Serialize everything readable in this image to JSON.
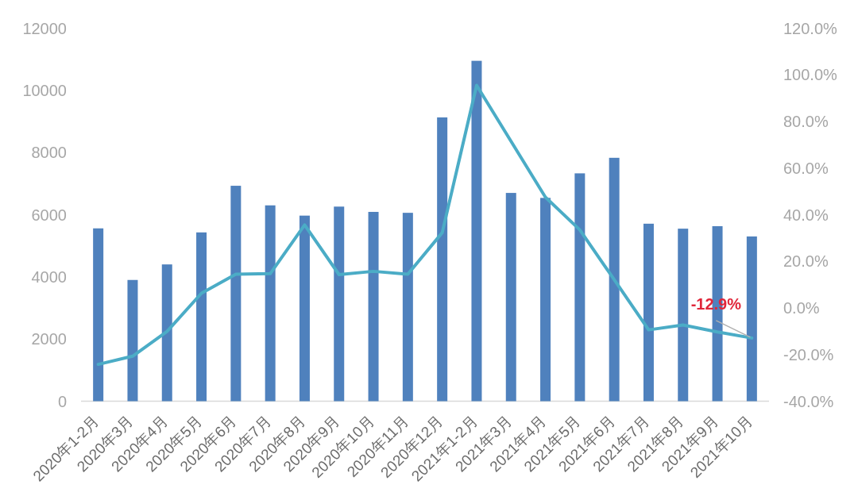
{
  "chart_data": {
    "type": "bar",
    "categories": [
      "2020年1-2月",
      "2020年3月",
      "2020年4月",
      "2020年5月",
      "2020年6月",
      "2020年7月",
      "2020年8月",
      "2020年9月",
      "2020年10月",
      "2020年11月",
      "2020年12月",
      "2021年1-2月",
      "2021年3月",
      "2021年4月",
      "2021年5月",
      "2021年6月",
      "2021年7月",
      "2021年8月",
      "2021年9月",
      "2021年10月"
    ],
    "series": [
      {
        "color": "#4f81bd",
        "values": [
          5560,
          3900,
          4400,
          5430,
          6930,
          6300,
          5970,
          6260,
          6090,
          6060,
          9130,
          10950,
          6700,
          6540,
          7330,
          7830,
          5710,
          5550,
          5630,
          5300
        ]
      },
      {
        "type": "line",
        "axis": "y2",
        "color": "#4bacc6",
        "values": [
          -24.2,
          -20.7,
          -10.1,
          6.3,
          14.5,
          14.7,
          35.6,
          14.3,
          15.7,
          14.5,
          32.3,
          95.5,
          71.5,
          47.5,
          33.5,
          12.1,
          -9.4,
          -7.3,
          -10.3,
          -12.9
        ],
        "value_labels": [
          null,
          null,
          null,
          null,
          null,
          null,
          null,
          null,
          null,
          null,
          null,
          null,
          null,
          null,
          null,
          null,
          null,
          null,
          null,
          "-12.9%"
        ]
      }
    ],
    "ylim": [
      0,
      12000
    ],
    "yticks": [
      0,
      2000,
      4000,
      6000,
      8000,
      10000,
      12000
    ],
    "y2lim": [
      -40,
      120
    ],
    "y2ticks": [
      {
        "value": -40,
        "label": "-40.0%"
      },
      {
        "value": -20,
        "label": "-20.0%"
      },
      {
        "value": 0,
        "label": "0.0%"
      },
      {
        "value": 20,
        "label": "20.0%"
      },
      {
        "value": 40,
        "label": "40.0%"
      },
      {
        "value": 60,
        "label": "60.0%"
      },
      {
        "value": 80,
        "label": "80.0%"
      },
      {
        "value": 100,
        "label": "100.0%"
      },
      {
        "value": 120,
        "label": "120.0%"
      }
    ]
  }
}
